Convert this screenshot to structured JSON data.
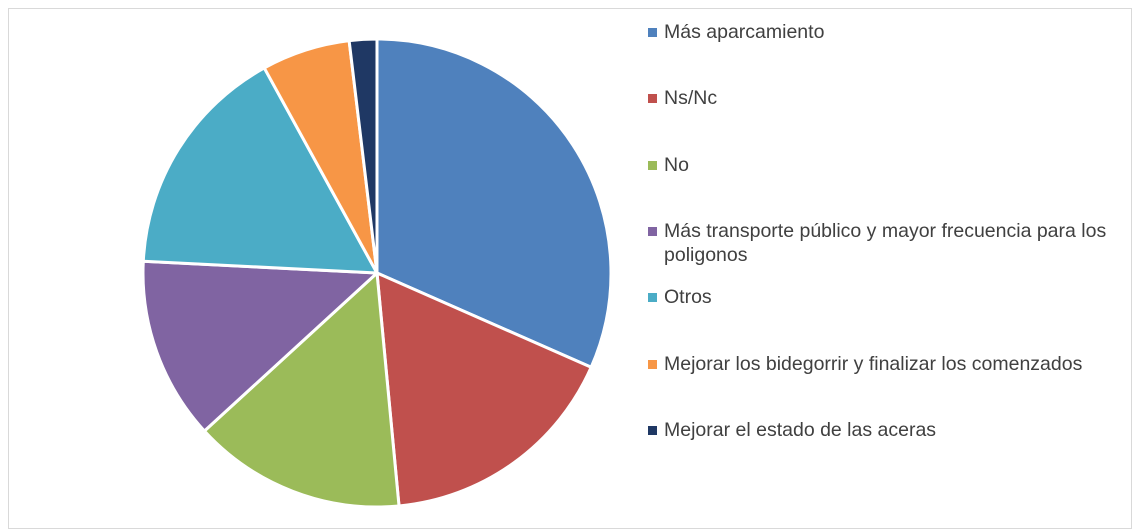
{
  "chart_data": {
    "type": "pie",
    "categories": [
      "Más aparcamiento",
      "Ns/Nc",
      "No",
      "Más transporte público y mayor frecuencia para los poligonos",
      "Otros",
      "Mejorar los bidegorrir y finalizar los comenzados",
      "Mejorar el estado de las aceras"
    ],
    "values": [
      31.6,
      16.9,
      14.7,
      12.6,
      16.2,
      6.1,
      1.9
    ],
    "colors": [
      "#4f81bd",
      "#c0504d",
      "#9bbb59",
      "#8064a2",
      "#4bacc6",
      "#f79646",
      "#1f3864"
    ],
    "legend": "right"
  }
}
